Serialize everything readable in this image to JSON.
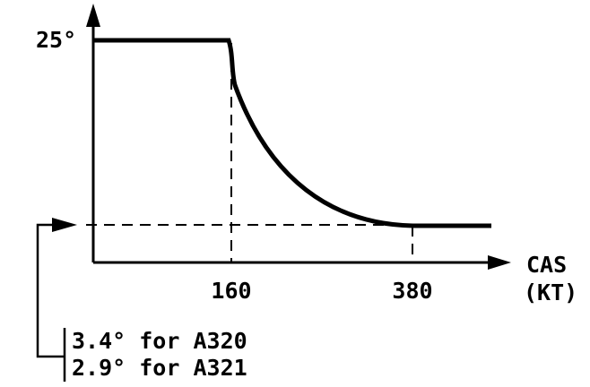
{
  "y_axis": {
    "label": "25°"
  },
  "x_axis": {
    "ticks": [
      "160",
      "380"
    ],
    "label": [
      "CAS",
      "(KT)"
    ]
  },
  "notes": [
    "3.4° for A320",
    "2.9° for A321"
  ]
}
